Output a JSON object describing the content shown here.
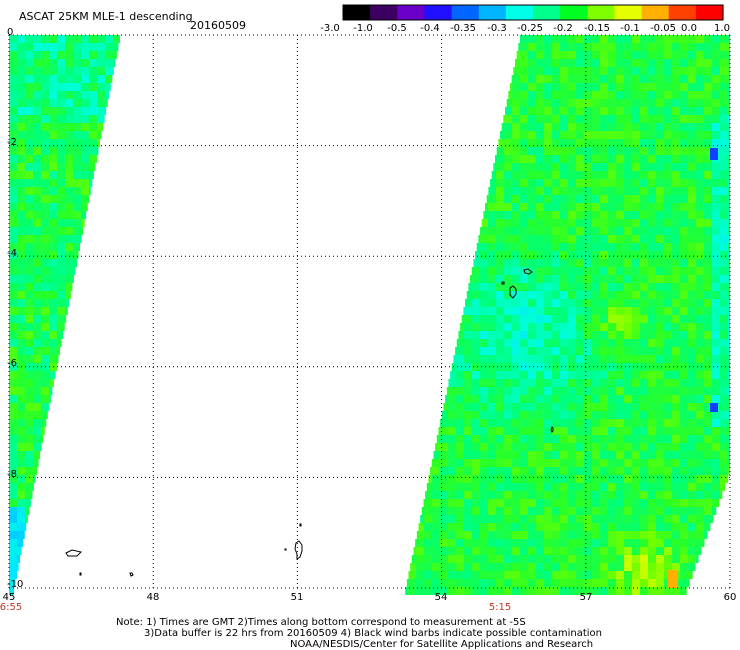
{
  "header": {
    "title": "ASCAT 25KM MLE-1 descending",
    "date": "20160509"
  },
  "colorbar": {
    "labels": [
      "-3.0",
      "-1.0",
      "-0.5",
      "-0.4",
      "-0.35",
      "-0.3",
      "-0.25",
      "-0.2",
      "-0.15",
      "-0.1",
      "-0.05",
      "0.0",
      "1.0"
    ],
    "colors": [
      "#000000",
      "#3c0060",
      "#6a00c8",
      "#2010ff",
      "#0066ff",
      "#00b4ff",
      "#00ffe6",
      "#00ff8c",
      "#00ff20",
      "#80ff00",
      "#e6ff00",
      "#ffb000",
      "#ff4000",
      "#ff0000"
    ]
  },
  "axes": {
    "lon_ticks": [
      "45",
      "48",
      "51",
      "54",
      "57",
      "60"
    ],
    "lat_ticks": [
      "0",
      "-2",
      "-4",
      "-6",
      "-8",
      "-10"
    ],
    "time_labels": [
      "6:55",
      "5:15"
    ]
  },
  "map": {
    "lon_range": [
      45,
      60
    ],
    "lat_range": [
      -10,
      0
    ],
    "grid": "dotted",
    "swaths": [
      {
        "name": "west",
        "times": "6:55"
      },
      {
        "name": "east",
        "times": "5:15"
      }
    ]
  },
  "notes": {
    "line1": "Note: 1) Times are GMT 2)Times along bottom correspond to measurement at -5S",
    "line2": "3)Data buffer is 22 hrs from 20160509 4) Black wind barbs indicate possible contamination",
    "line3": "NOAA/NESDIS/Center for Satellite Applications and Research"
  }
}
